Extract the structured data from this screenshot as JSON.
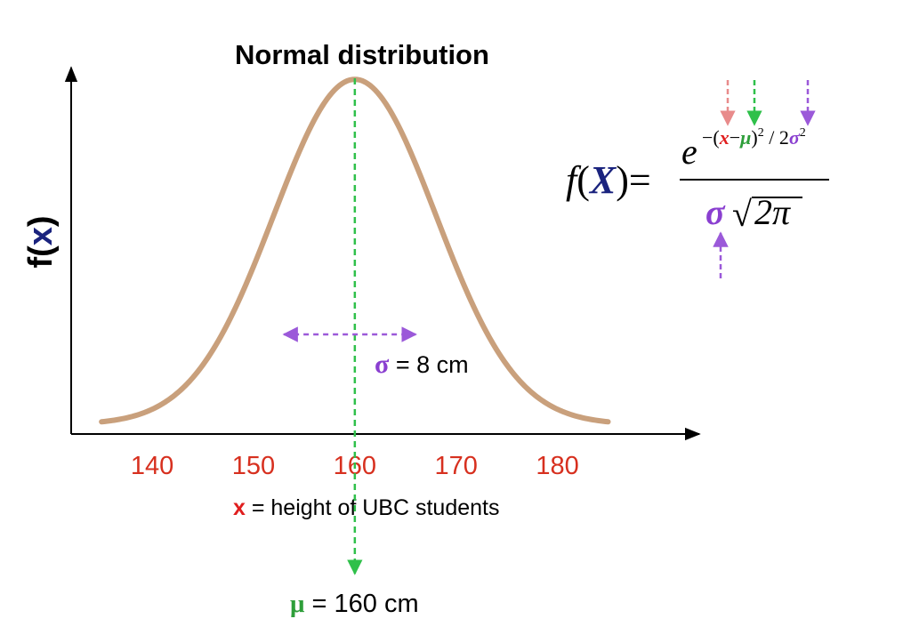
{
  "colors": {
    "curve": "#c9a07c",
    "axis": "#000000",
    "tick": "#d7301f",
    "mu": "#2e9e3a",
    "mu_line": "#2fc04a",
    "sigma": "#8a3fd0",
    "x_mark": "#e01e1e",
    "x_arrow": "#e88b8b",
    "X_symbol": "#1a237e",
    "text": "#000000"
  },
  "chart_data": {
    "type": "line",
    "title": "Normal distribution",
    "ylabel_prefix": "f(",
    "ylabel_var": "x",
    "ylabel_suffix": ")",
    "xlabel_var": "x",
    "xlabel_text": " = height of UBC students",
    "xlim": [
      132,
      194
    ],
    "ylim": [
      0,
      1.03
    ],
    "x_ticks": [
      140,
      150,
      160,
      170,
      180
    ],
    "x_tick_labels": [
      "140",
      "150",
      "160",
      "170",
      "180"
    ],
    "series": [
      {
        "name": "normal pdf",
        "mean": 160,
        "sd": 8,
        "x_range": [
          135,
          185
        ]
      }
    ],
    "mu": {
      "symbol": "μ",
      "text": " = 160 cm",
      "value": 160
    },
    "sigma": {
      "symbol": "σ",
      "text": " = 8 cm",
      "arrow_range": [
        153,
        166
      ],
      "arrow_y": 0.28
    }
  },
  "formula": {
    "f": "f",
    "open": "(",
    "X": "X",
    "close": ")",
    "eq": "=",
    "num_e": "e",
    "num_exp_a": "−(",
    "num_exp_x": "x",
    "num_exp_minus": "−",
    "num_exp_mu": "μ",
    "num_exp_b": ")",
    "num_exp_sq": "2",
    "num_exp_c": " / 2",
    "num_exp_sigma": "σ",
    "num_exp_sq2": "2",
    "den_sigma": "σ",
    "den_sqrt": "√",
    "den_arg": "2π"
  }
}
